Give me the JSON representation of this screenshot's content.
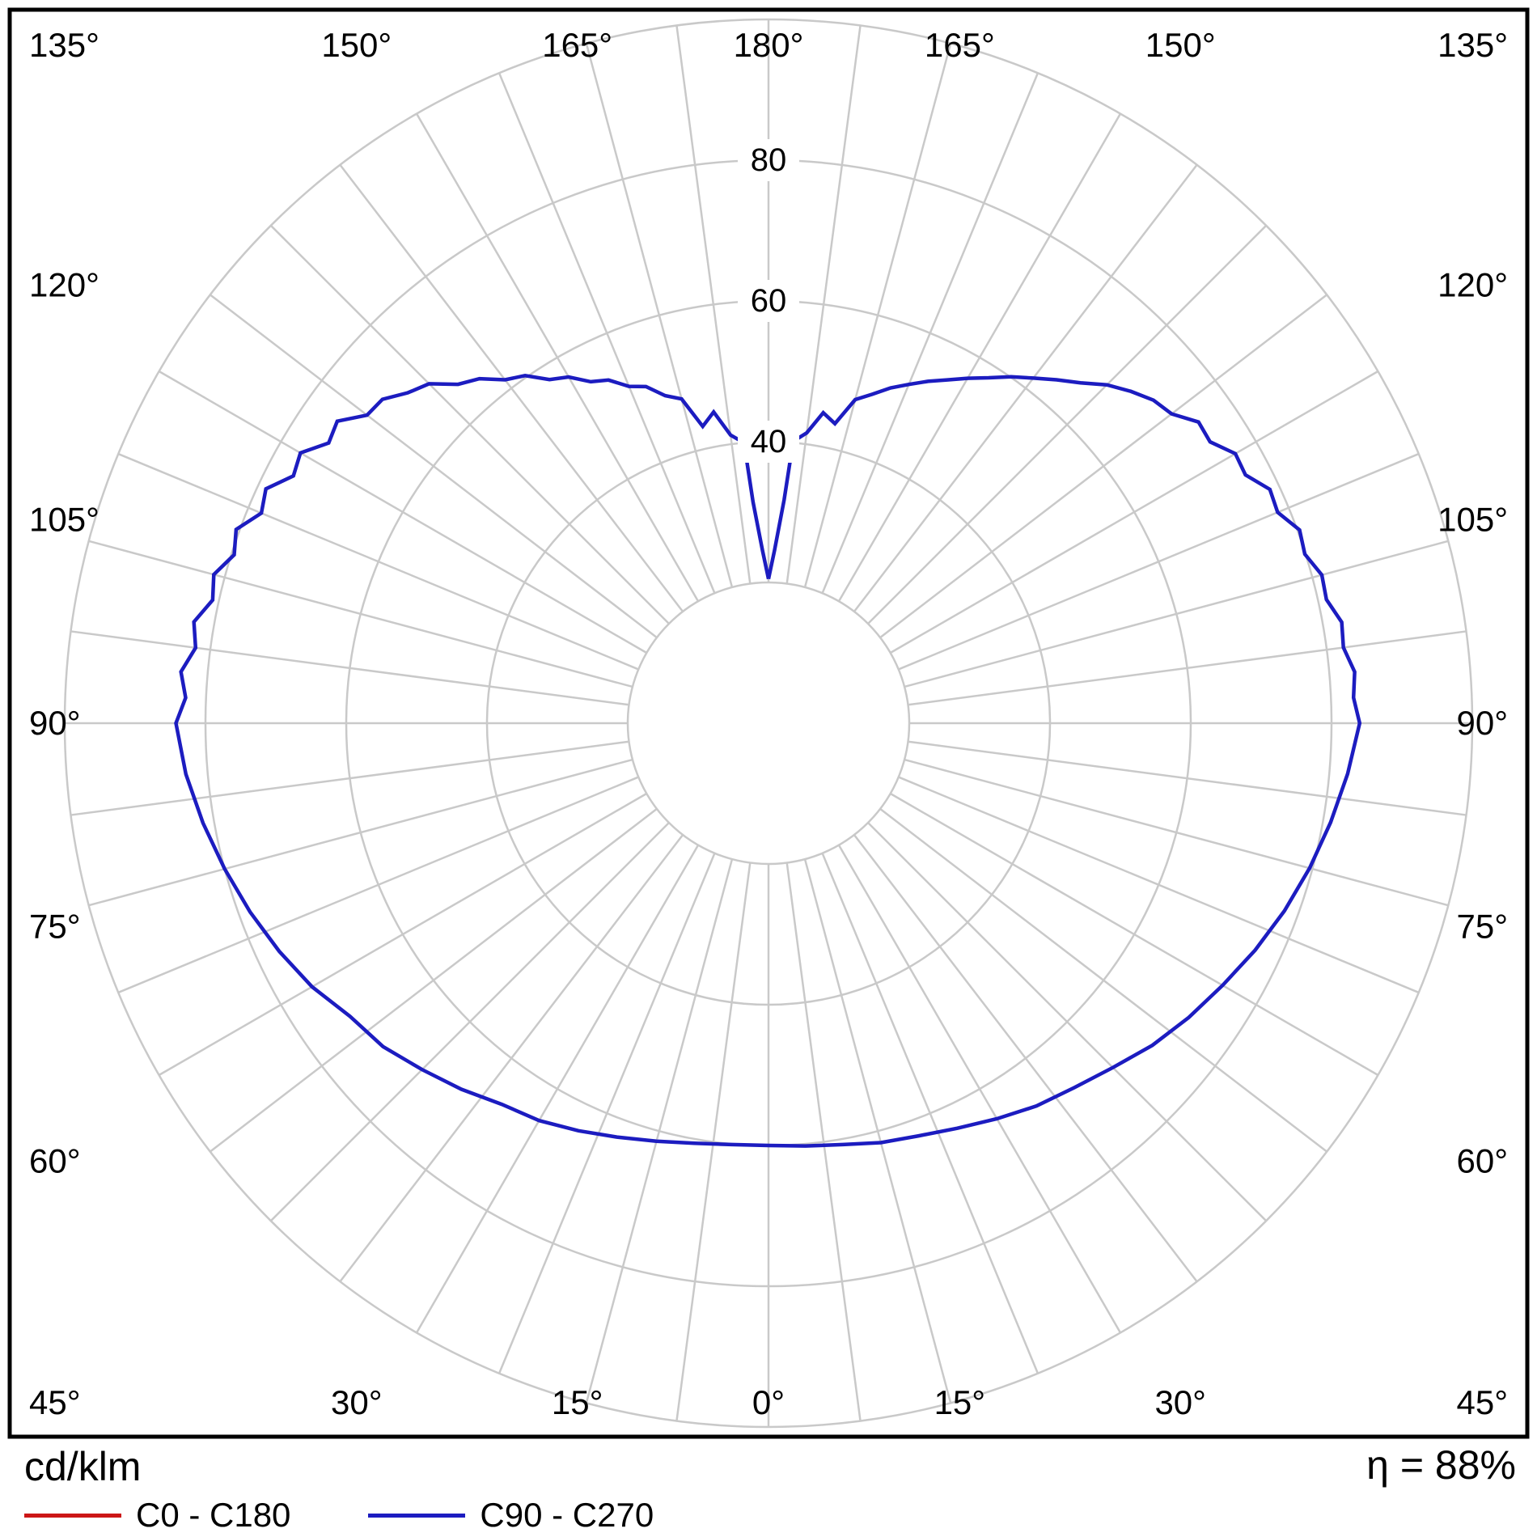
{
  "chart_data": {
    "type": "polar-photometric",
    "title": "",
    "units_label": "cd/klm",
    "efficiency_label": "η = 88%",
    "rmax": 100,
    "radial_ticks": [
      20,
      40,
      60,
      80,
      100
    ],
    "radial_tick_labels": [
      {
        "value": 40,
        "label": "40"
      },
      {
        "value": 60,
        "label": "60"
      },
      {
        "value": 80,
        "label": "80"
      }
    ],
    "angle_grid_step_deg": 7.5,
    "angle_label_step_deg": 15,
    "angle_labels": [
      "0°",
      "15°",
      "30°",
      "45°",
      "60°",
      "75°",
      "90°",
      "105°",
      "120°",
      "135°",
      "150°",
      "165°",
      "180°"
    ],
    "legend": [
      {
        "label": "C0 - C180",
        "color": "#cc1616"
      },
      {
        "label": "C90 - C270",
        "color": "#1c1cc0"
      }
    ],
    "colors": {
      "grid": "#c9c9c9",
      "frame": "#000000",
      "background": "#ffffff",
      "text": "#000000"
    },
    "series": [
      {
        "name": "C90 - C270",
        "color": "#1c1cc0",
        "points": [
          [
            -180,
            20.5
          ],
          [
            -178,
            24.6
          ],
          [
            -176,
            31.5
          ],
          [
            -175,
            40.0
          ],
          [
            -172.5,
            41.3
          ],
          [
            -170,
            44.9
          ],
          [
            -167.5,
            43.2
          ],
          [
            -165,
            47.7
          ],
          [
            -162.5,
            48.8
          ],
          [
            -160,
            50.9
          ],
          [
            -157.5,
            51.8
          ],
          [
            -155,
            53.8
          ],
          [
            -152.5,
            54.7
          ],
          [
            -150,
            56.8
          ],
          [
            -147.5,
            57.9
          ],
          [
            -145,
            60.3
          ],
          [
            -142.5,
            61.5
          ],
          [
            -140,
            63.9
          ],
          [
            -137.5,
            65.3
          ],
          [
            -135,
            68.2
          ],
          [
            -132.5,
            69.5
          ],
          [
            -130,
            71.6
          ],
          [
            -127.5,
            71.9
          ],
          [
            -125,
            74.8
          ],
          [
            -122.5,
            74.1
          ],
          [
            -120,
            76.8
          ],
          [
            -117.5,
            76.1
          ],
          [
            -115,
            78.8
          ],
          [
            -112.5,
            78.0
          ],
          [
            -110,
            80.5
          ],
          [
            -107.5,
            79.6
          ],
          [
            -105,
            81.6
          ],
          [
            -102.5,
            80.9
          ],
          [
            -100,
            82.9
          ],
          [
            -97.5,
            82.1
          ],
          [
            -95,
            83.8
          ],
          [
            -92.5,
            82.9
          ],
          [
            -90,
            84.2
          ],
          [
            -85,
            83.1
          ],
          [
            -80,
            81.6
          ],
          [
            -75,
            80.0
          ],
          [
            -70,
            78.4
          ],
          [
            -65,
            76.7
          ],
          [
            -60,
            74.9
          ],
          [
            -55,
            72.6
          ],
          [
            -50,
            71.5
          ],
          [
            -45,
            69.6
          ],
          [
            -40,
            67.9
          ],
          [
            -35,
            66.1
          ],
          [
            -30,
            65.2
          ],
          [
            -25,
            63.9
          ],
          [
            -20,
            62.6
          ],
          [
            -15,
            61.5
          ],
          [
            -10,
            60.6
          ],
          [
            -5,
            60.1
          ],
          [
            0,
            60.0
          ],
          [
            5,
            60.3
          ],
          [
            10,
            60.8
          ],
          [
            15,
            61.7
          ],
          [
            20,
            62.4
          ],
          [
            25,
            63.5
          ],
          [
            30,
            64.9
          ],
          [
            35,
            66.4
          ],
          [
            40,
            67.6
          ],
          [
            45,
            69.2
          ],
          [
            50,
            71.2
          ],
          [
            55,
            72.9
          ],
          [
            60,
            74.5
          ],
          [
            65,
            76.3
          ],
          [
            70,
            78.0
          ],
          [
            75,
            79.6
          ],
          [
            80,
            81.1
          ],
          [
            85,
            82.6
          ],
          [
            90,
            84.0
          ],
          [
            92.5,
            83.2
          ],
          [
            95,
            83.6
          ],
          [
            97.5,
            82.4
          ],
          [
            100,
            82.7
          ],
          [
            102.5,
            81.2
          ],
          [
            105,
            81.4
          ],
          [
            107.5,
            79.9
          ],
          [
            110,
            80.3
          ],
          [
            112.5,
            78.3
          ],
          [
            115,
            78.6
          ],
          [
            117.5,
            76.4
          ],
          [
            120,
            76.6
          ],
          [
            122.5,
            74.4
          ],
          [
            125,
            74.6
          ],
          [
            127.5,
            72.2
          ],
          [
            130,
            71.4
          ],
          [
            132.5,
            69.8
          ],
          [
            135,
            68.0
          ],
          [
            137.5,
            65.6
          ],
          [
            140,
            63.7
          ],
          [
            142.5,
            61.8
          ],
          [
            145,
            60.1
          ],
          [
            147.5,
            58.2
          ],
          [
            150,
            56.6
          ],
          [
            152.5,
            55.0
          ],
          [
            155,
            53.6
          ],
          [
            157.5,
            52.1
          ],
          [
            160,
            50.7
          ],
          [
            162.5,
            49.0
          ],
          [
            165,
            47.6
          ],
          [
            167.5,
            43.6
          ],
          [
            170,
            44.8
          ],
          [
            172.5,
            41.6
          ],
          [
            175,
            40.2
          ],
          [
            176,
            31.8
          ],
          [
            178,
            24.6
          ],
          [
            180,
            20.5
          ]
        ]
      }
    ]
  }
}
